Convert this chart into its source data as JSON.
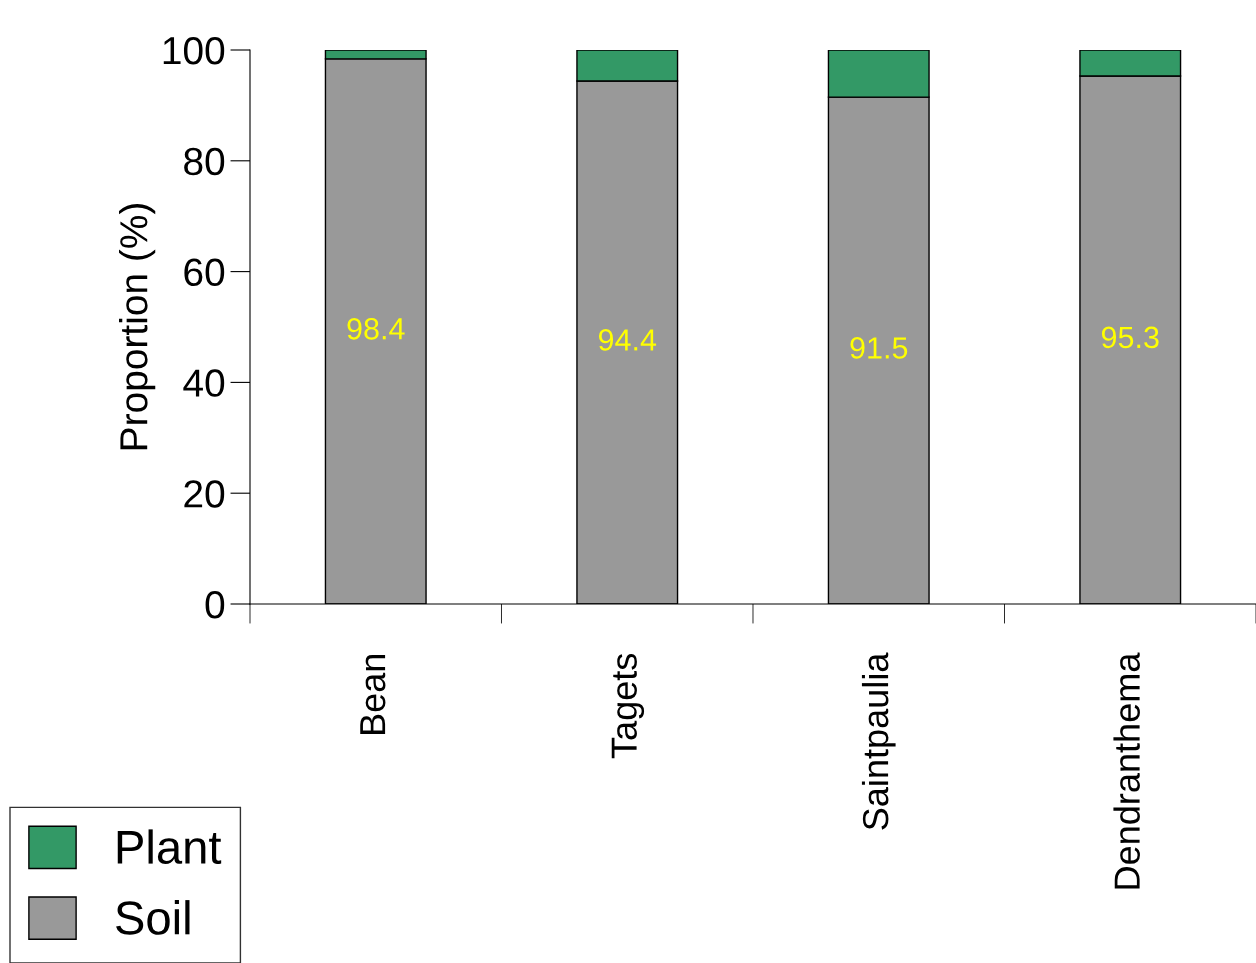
{
  "chart_data": {
    "type": "bar",
    "stacked": true,
    "ylabel": "Proportion (%)",
    "categories": [
      "Bean",
      "Tagets",
      "Saintpaulia",
      "Dendranthema"
    ],
    "series": [
      {
        "name": "Soil",
        "color": "#999999",
        "values": [
          98.4,
          94.4,
          91.5,
          95.3
        ],
        "value_labels": [
          "98.4",
          "94.4",
          "91.5",
          "95.3"
        ]
      },
      {
        "name": "Plant",
        "color": "#339966",
        "values": [
          1.6,
          5.6,
          8.5,
          4.7
        ]
      }
    ],
    "ylim": [
      0,
      100
    ],
    "yticks": [
      0,
      20,
      40,
      60,
      80,
      100
    ],
    "grid": false,
    "legend": "bottom left"
  }
}
